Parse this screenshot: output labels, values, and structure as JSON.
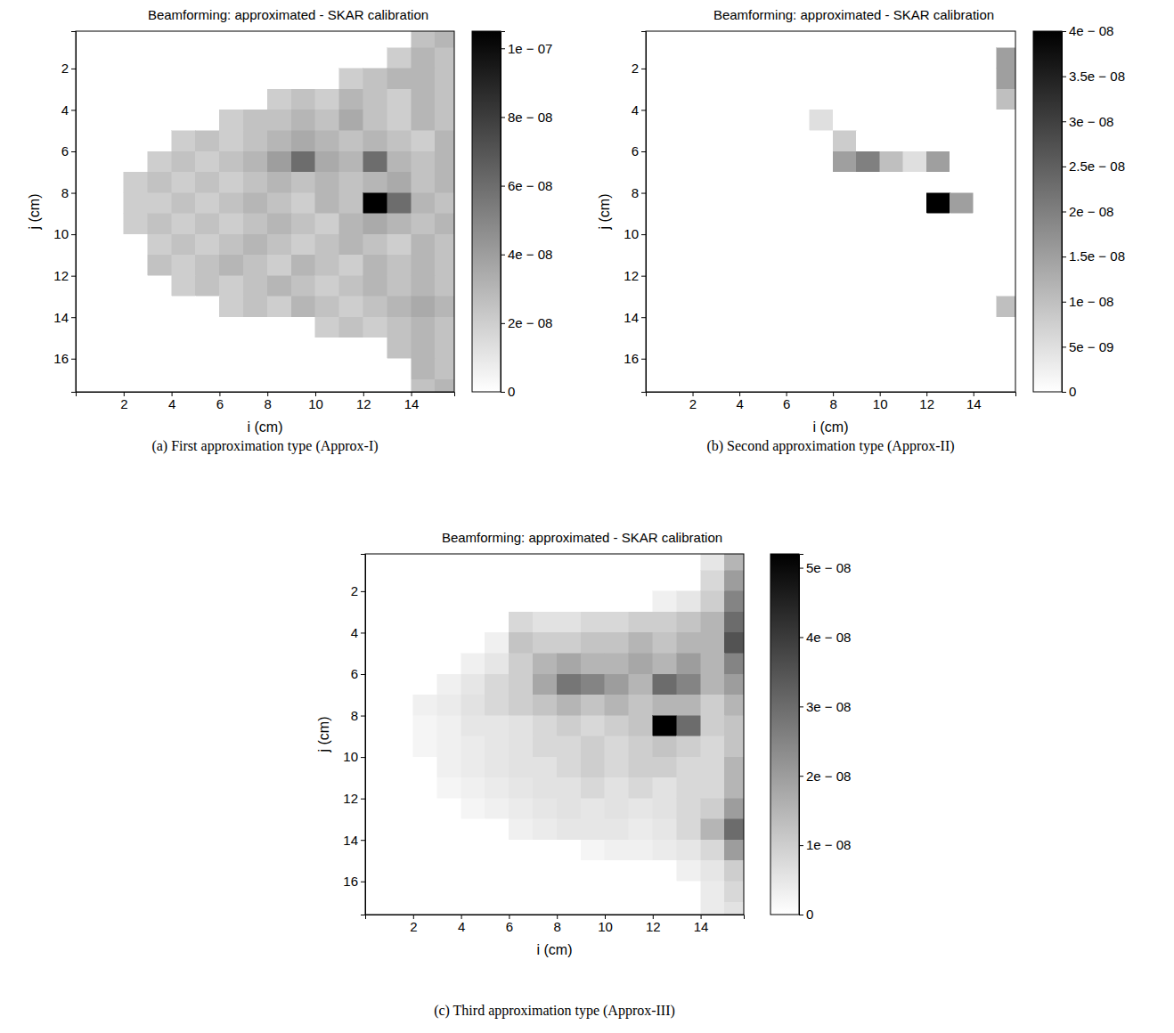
{
  "chart_data": [
    {
      "type": "heatmap",
      "title": "Beamforming: approximated - SKAR calibration",
      "caption": "(a) First approximation type (Approx-I)",
      "x_label": "i (cm)",
      "y_label": "j (cm)",
      "x": [
        0.5,
        1.5,
        2.5,
        3.5,
        4.5,
        5.5,
        6.5,
        7.5,
        8.5,
        9.5,
        10.5,
        11.5,
        12.5,
        13.5,
        14.5,
        15.5
      ],
      "y": [
        0.5,
        1.5,
        2.5,
        3.5,
        4.5,
        5.5,
        6.5,
        7.5,
        8.5,
        9.5,
        10.5,
        11.5,
        12.5,
        13.5,
        14.5,
        15.5,
        16.5,
        17.5
      ],
      "xlim": [
        0,
        15.8
      ],
      "ylim": [
        0.2,
        17.6
      ],
      "xticks": [
        2,
        4,
        6,
        8,
        10,
        12,
        14
      ],
      "yticks": [
        2,
        4,
        6,
        8,
        10,
        12,
        14,
        16
      ],
      "cells": [
        [
          0,
          0,
          0,
          0,
          0,
          0,
          0,
          0,
          0,
          0,
          0,
          0,
          0,
          0,
          2.5e-08,
          3e-08
        ],
        [
          0,
          0,
          0,
          0,
          0,
          0,
          0,
          0,
          0,
          0,
          0,
          0,
          0,
          2e-08,
          3e-08,
          2.5e-08
        ],
        [
          0,
          0,
          0,
          0,
          0,
          0,
          0,
          0,
          0,
          0,
          0,
          2e-08,
          2.5e-08,
          3e-08,
          3e-08,
          2.5e-08
        ],
        [
          0,
          0,
          0,
          0,
          0,
          0,
          0,
          0,
          2e-08,
          2.5e-08,
          2e-08,
          3e-08,
          2.5e-08,
          2e-08,
          3e-08,
          2.5e-08
        ],
        [
          0,
          0,
          0,
          0,
          0,
          0,
          2e-08,
          2.5e-08,
          2.5e-08,
          3e-08,
          2.5e-08,
          3.5e-08,
          2.5e-08,
          2e-08,
          3e-08,
          2.5e-08
        ],
        [
          0,
          0,
          0,
          0,
          2e-08,
          2.5e-08,
          2e-08,
          2.5e-08,
          3e-08,
          3.5e-08,
          3e-08,
          2.5e-08,
          3e-08,
          2.5e-08,
          2e-08,
          3e-08
        ],
        [
          0,
          0,
          0,
          2e-08,
          2.5e-08,
          2e-08,
          2.5e-08,
          3e-08,
          4e-08,
          6e-08,
          3.5e-08,
          3e-08,
          6e-08,
          3e-08,
          2.5e-08,
          3e-08
        ],
        [
          0,
          0,
          2e-08,
          2.5e-08,
          2e-08,
          2.5e-08,
          2e-08,
          2.5e-08,
          3e-08,
          2.5e-08,
          3e-08,
          2.5e-08,
          3e-08,
          3.5e-08,
          2.5e-08,
          3e-08
        ],
        [
          0,
          0,
          2e-08,
          2e-08,
          2.5e-08,
          2e-08,
          2.5e-08,
          3e-08,
          2.5e-08,
          2e-08,
          3e-08,
          2.5e-08,
          1.05e-07,
          6e-08,
          3e-08,
          2.5e-08
        ],
        [
          0,
          0,
          2e-08,
          2.5e-08,
          2e-08,
          2.5e-08,
          2e-08,
          2.5e-08,
          3e-08,
          2.5e-08,
          2e-08,
          3e-08,
          3.5e-08,
          3e-08,
          2.5e-08,
          3e-08
        ],
        [
          0,
          0,
          0,
          2e-08,
          2.5e-08,
          2e-08,
          2.5e-08,
          3e-08,
          2.5e-08,
          2e-08,
          2.5e-08,
          3e-08,
          2.5e-08,
          2e-08,
          3e-08,
          2.5e-08
        ],
        [
          0,
          0,
          0,
          2.5e-08,
          2e-08,
          2.5e-08,
          3e-08,
          2.5e-08,
          2e-08,
          3e-08,
          2.5e-08,
          2e-08,
          3e-08,
          2.5e-08,
          3e-08,
          2.5e-08
        ],
        [
          0,
          0,
          0,
          0,
          2e-08,
          2.5e-08,
          2e-08,
          2.5e-08,
          3e-08,
          2.5e-08,
          2e-08,
          2.5e-08,
          3e-08,
          2.5e-08,
          3e-08,
          2.5e-08
        ],
        [
          0,
          0,
          0,
          0,
          0,
          0,
          2e-08,
          2.5e-08,
          2e-08,
          3e-08,
          2.5e-08,
          2e-08,
          2.5e-08,
          3e-08,
          3.5e-08,
          3e-08
        ],
        [
          0,
          0,
          0,
          0,
          0,
          0,
          0,
          0,
          0,
          0,
          2e-08,
          2.5e-08,
          2e-08,
          2.5e-08,
          3e-08,
          2.5e-08
        ],
        [
          0,
          0,
          0,
          0,
          0,
          0,
          0,
          0,
          0,
          0,
          0,
          0,
          0,
          2.5e-08,
          3e-08,
          2.5e-08
        ],
        [
          0,
          0,
          0,
          0,
          0,
          0,
          0,
          0,
          0,
          0,
          0,
          0,
          0,
          0,
          3e-08,
          2.5e-08
        ],
        [
          0,
          0,
          0,
          0,
          0,
          0,
          0,
          0,
          0,
          0,
          0,
          0,
          0,
          0,
          2.5e-08,
          3e-08
        ]
      ],
      "colorbar_range": [
        0,
        1.05e-07
      ],
      "colorbar_ticks": [
        0,
        {
          "value": 2e-08,
          "label": "2e − 08"
        },
        {
          "value": 4e-08,
          "label": "4e − 08"
        },
        {
          "value": 6e-08,
          "label": "6e − 08"
        },
        {
          "value": 8e-08,
          "label": "8e − 08"
        },
        {
          "value": 1e-07,
          "label": "1e − 07"
        }
      ]
    },
    {
      "type": "heatmap",
      "title": "Beamforming: approximated - SKAR calibration",
      "caption": "(b) Second approximation type (Approx-II)",
      "x_label": "i (cm)",
      "y_label": "j (cm)",
      "x": [
        0.5,
        1.5,
        2.5,
        3.5,
        4.5,
        5.5,
        6.5,
        7.5,
        8.5,
        9.5,
        10.5,
        11.5,
        12.5,
        13.5,
        14.5,
        15.5
      ],
      "y": [
        0.5,
        1.5,
        2.5,
        3.5,
        4.5,
        5.5,
        6.5,
        7.5,
        8.5,
        9.5,
        10.5,
        11.5,
        12.5,
        13.5,
        14.5,
        15.5,
        16.5,
        17.5
      ],
      "xlim": [
        0,
        15.8
      ],
      "ylim": [
        0.2,
        17.6
      ],
      "xticks": [
        2,
        4,
        6,
        8,
        10,
        12,
        14
      ],
      "yticks": [
        2,
        4,
        6,
        8,
        10,
        12,
        14,
        16
      ],
      "cells": [
        [
          0,
          0,
          0,
          0,
          0,
          0,
          0,
          0,
          0,
          0,
          0,
          0,
          0,
          0,
          0,
          0
        ],
        [
          0,
          0,
          0,
          0,
          0,
          0,
          0,
          0,
          0,
          0,
          0,
          0,
          0,
          0,
          0,
          1.5e-08
        ],
        [
          0,
          0,
          0,
          0,
          0,
          0,
          0,
          0,
          0,
          0,
          0,
          0,
          0,
          0,
          0,
          1.5e-08
        ],
        [
          0,
          0,
          0,
          0,
          0,
          0,
          0,
          0,
          0,
          0,
          0,
          0,
          0,
          0,
          0,
          1e-08
        ],
        [
          0,
          0,
          0,
          0,
          0,
          0,
          0,
          5e-09,
          0,
          0,
          0,
          0,
          0,
          0,
          0,
          0
        ],
        [
          0,
          0,
          0,
          0,
          0,
          0,
          0,
          0,
          8e-09,
          0,
          0,
          0,
          0,
          0,
          0,
          0
        ],
        [
          0,
          0,
          0,
          0,
          0,
          0,
          0,
          0,
          1.5e-08,
          2e-08,
          1e-08,
          5e-09,
          1.5e-08,
          0,
          0,
          0
        ],
        [
          0,
          0,
          0,
          0,
          0,
          0,
          0,
          0,
          0,
          0,
          0,
          0,
          0,
          0,
          0,
          0
        ],
        [
          0,
          0,
          0,
          0,
          0,
          0,
          0,
          0,
          0,
          0,
          0,
          0,
          4e-08,
          1.5e-08,
          0,
          0
        ],
        [
          0,
          0,
          0,
          0,
          0,
          0,
          0,
          0,
          0,
          0,
          0,
          0,
          0,
          0,
          0,
          0
        ],
        [
          0,
          0,
          0,
          0,
          0,
          0,
          0,
          0,
          0,
          0,
          0,
          0,
          0,
          0,
          0,
          0
        ],
        [
          0,
          0,
          0,
          0,
          0,
          0,
          0,
          0,
          0,
          0,
          0,
          0,
          0,
          0,
          0,
          0
        ],
        [
          0,
          0,
          0,
          0,
          0,
          0,
          0,
          0,
          0,
          0,
          0,
          0,
          0,
          0,
          0,
          0
        ],
        [
          0,
          0,
          0,
          0,
          0,
          0,
          0,
          0,
          0,
          0,
          0,
          0,
          0,
          0,
          0,
          1e-08
        ],
        [
          0,
          0,
          0,
          0,
          0,
          0,
          0,
          0,
          0,
          0,
          0,
          0,
          0,
          0,
          0,
          0
        ],
        [
          0,
          0,
          0,
          0,
          0,
          0,
          0,
          0,
          0,
          0,
          0,
          0,
          0,
          0,
          0,
          0
        ],
        [
          0,
          0,
          0,
          0,
          0,
          0,
          0,
          0,
          0,
          0,
          0,
          0,
          0,
          0,
          0,
          0
        ],
        [
          0,
          0,
          0,
          0,
          0,
          0,
          0,
          0,
          0,
          0,
          0,
          0,
          0,
          0,
          0,
          0
        ]
      ],
      "colorbar_range": [
        0,
        4e-08
      ],
      "colorbar_ticks": [
        0,
        {
          "value": 5e-09,
          "label": "5e − 09"
        },
        {
          "value": 1e-08,
          "label": "1e − 08"
        },
        {
          "value": 1.5e-08,
          "label": "1.5e − 08"
        },
        {
          "value": 2e-08,
          "label": "2e − 08"
        },
        {
          "value": 2.5e-08,
          "label": "2.5e − 08"
        },
        {
          "value": 3e-08,
          "label": "3e − 08"
        },
        {
          "value": 3.5e-08,
          "label": "3.5e − 08"
        },
        {
          "value": 4e-08,
          "label": "4e − 08"
        }
      ]
    },
    {
      "type": "heatmap",
      "title": "Beamforming: approximated - SKAR calibration",
      "caption": "(c) Third approximation type (Approx-III)",
      "x_label": "i (cm)",
      "y_label": "j (cm)",
      "x": [
        0.5,
        1.5,
        2.5,
        3.5,
        4.5,
        5.5,
        6.5,
        7.5,
        8.5,
        9.5,
        10.5,
        11.5,
        12.5,
        13.5,
        14.5,
        15.5
      ],
      "y": [
        0.5,
        1.5,
        2.5,
        3.5,
        4.5,
        5.5,
        6.5,
        7.5,
        8.5,
        9.5,
        10.5,
        11.5,
        12.5,
        13.5,
        14.5,
        15.5,
        16.5,
        17.5
      ],
      "xlim": [
        0,
        15.8
      ],
      "ylim": [
        0.2,
        17.6
      ],
      "xticks": [
        2,
        4,
        6,
        8,
        10,
        12,
        14
      ],
      "yticks": [
        2,
        4,
        6,
        8,
        10,
        12,
        14,
        16
      ],
      "cells": [
        [
          0,
          0,
          0,
          0,
          0,
          0,
          0,
          0,
          0,
          0,
          0,
          0,
          0,
          0,
          5e-09,
          1.5e-08
        ],
        [
          0,
          0,
          0,
          0,
          0,
          0,
          0,
          0,
          0,
          0,
          0,
          0,
          0,
          0,
          8e-09,
          2e-08
        ],
        [
          0,
          0,
          0,
          0,
          0,
          0,
          0,
          0,
          0,
          0,
          0,
          0,
          3e-09,
          5e-09,
          1e-08,
          2.5e-08
        ],
        [
          0,
          0,
          0,
          0,
          0,
          0,
          8e-09,
          6e-09,
          6e-09,
          8e-09,
          8e-09,
          1e-08,
          1e-08,
          1.2e-08,
          1.5e-08,
          3e-08
        ],
        [
          0,
          0,
          0,
          0,
          0,
          3e-09,
          1.2e-08,
          1e-08,
          1e-08,
          1.2e-08,
          1.2e-08,
          1.5e-08,
          1.2e-08,
          1.5e-08,
          1.5e-08,
          3.5e-08
        ],
        [
          0,
          0,
          0,
          0,
          3e-09,
          5e-09,
          1e-08,
          1.5e-08,
          1.8e-08,
          1.5e-08,
          1.5e-08,
          1.8e-08,
          1.5e-08,
          2e-08,
          1.5e-08,
          2.5e-08
        ],
        [
          0,
          0,
          0,
          3e-09,
          5e-09,
          8e-09,
          1e-08,
          1.8e-08,
          2.8e-08,
          2.5e-08,
          2e-08,
          1.5e-08,
          3e-08,
          2.5e-08,
          1.5e-08,
          2e-08
        ],
        [
          0,
          0,
          3e-09,
          4e-09,
          6e-09,
          8e-09,
          1e-08,
          1.2e-08,
          1.5e-08,
          1.2e-08,
          1.5e-08,
          1.2e-08,
          1.5e-08,
          1.5e-08,
          1e-08,
          1.5e-08
        ],
        [
          0,
          0,
          2e-09,
          3e-09,
          5e-09,
          5e-09,
          6e-09,
          8e-09,
          1e-08,
          8e-09,
          1e-08,
          1.2e-08,
          5.2e-08,
          3e-08,
          1e-08,
          1.2e-08
        ],
        [
          0,
          0,
          2e-09,
          3e-09,
          4e-09,
          5e-09,
          6e-09,
          8e-09,
          8e-09,
          1e-08,
          8e-09,
          1e-08,
          1.2e-08,
          1e-08,
          8e-09,
          1.2e-08
        ],
        [
          0,
          0,
          0,
          3e-09,
          4e-09,
          5e-09,
          6e-09,
          6e-09,
          8e-09,
          1e-08,
          8e-09,
          1e-08,
          1e-08,
          8e-09,
          8e-09,
          1.5e-08
        ],
        [
          0,
          0,
          0,
          2e-09,
          3e-09,
          4e-09,
          5e-09,
          6e-09,
          6e-09,
          8e-09,
          6e-09,
          8e-09,
          6e-09,
          8e-09,
          8e-09,
          1.5e-08
        ],
        [
          0,
          0,
          0,
          0,
          2e-09,
          3e-09,
          4e-09,
          5e-09,
          6e-09,
          5e-09,
          6e-09,
          5e-09,
          6e-09,
          8e-09,
          1e-08,
          2e-08
        ],
        [
          0,
          0,
          0,
          0,
          0,
          0,
          3e-09,
          4e-09,
          5e-09,
          5e-09,
          5e-09,
          4e-09,
          5e-09,
          8e-09,
          1.5e-08,
          3e-08
        ],
        [
          0,
          0,
          0,
          0,
          0,
          0,
          0,
          0,
          0,
          2e-09,
          3e-09,
          3e-09,
          4e-09,
          5e-09,
          8e-09,
          2e-08
        ],
        [
          0,
          0,
          0,
          0,
          0,
          0,
          0,
          0,
          0,
          0,
          0,
          0,
          0,
          3e-09,
          5e-09,
          1e-08
        ],
        [
          0,
          0,
          0,
          0,
          0,
          0,
          0,
          0,
          0,
          0,
          0,
          0,
          0,
          0,
          4e-09,
          8e-09
        ],
        [
          0,
          0,
          0,
          0,
          0,
          0,
          0,
          0,
          0,
          0,
          0,
          0,
          0,
          0,
          4e-09,
          6e-09
        ]
      ],
      "colorbar_range": [
        0,
        5.2e-08
      ],
      "colorbar_ticks": [
        0,
        {
          "value": 1e-08,
          "label": "1e − 08"
        },
        {
          "value": 2e-08,
          "label": "2e − 08"
        },
        {
          "value": 3e-08,
          "label": "3e − 08"
        },
        {
          "value": 4e-08,
          "label": "4e − 08"
        },
        {
          "value": 5e-08,
          "label": "5e − 08"
        }
      ]
    }
  ]
}
